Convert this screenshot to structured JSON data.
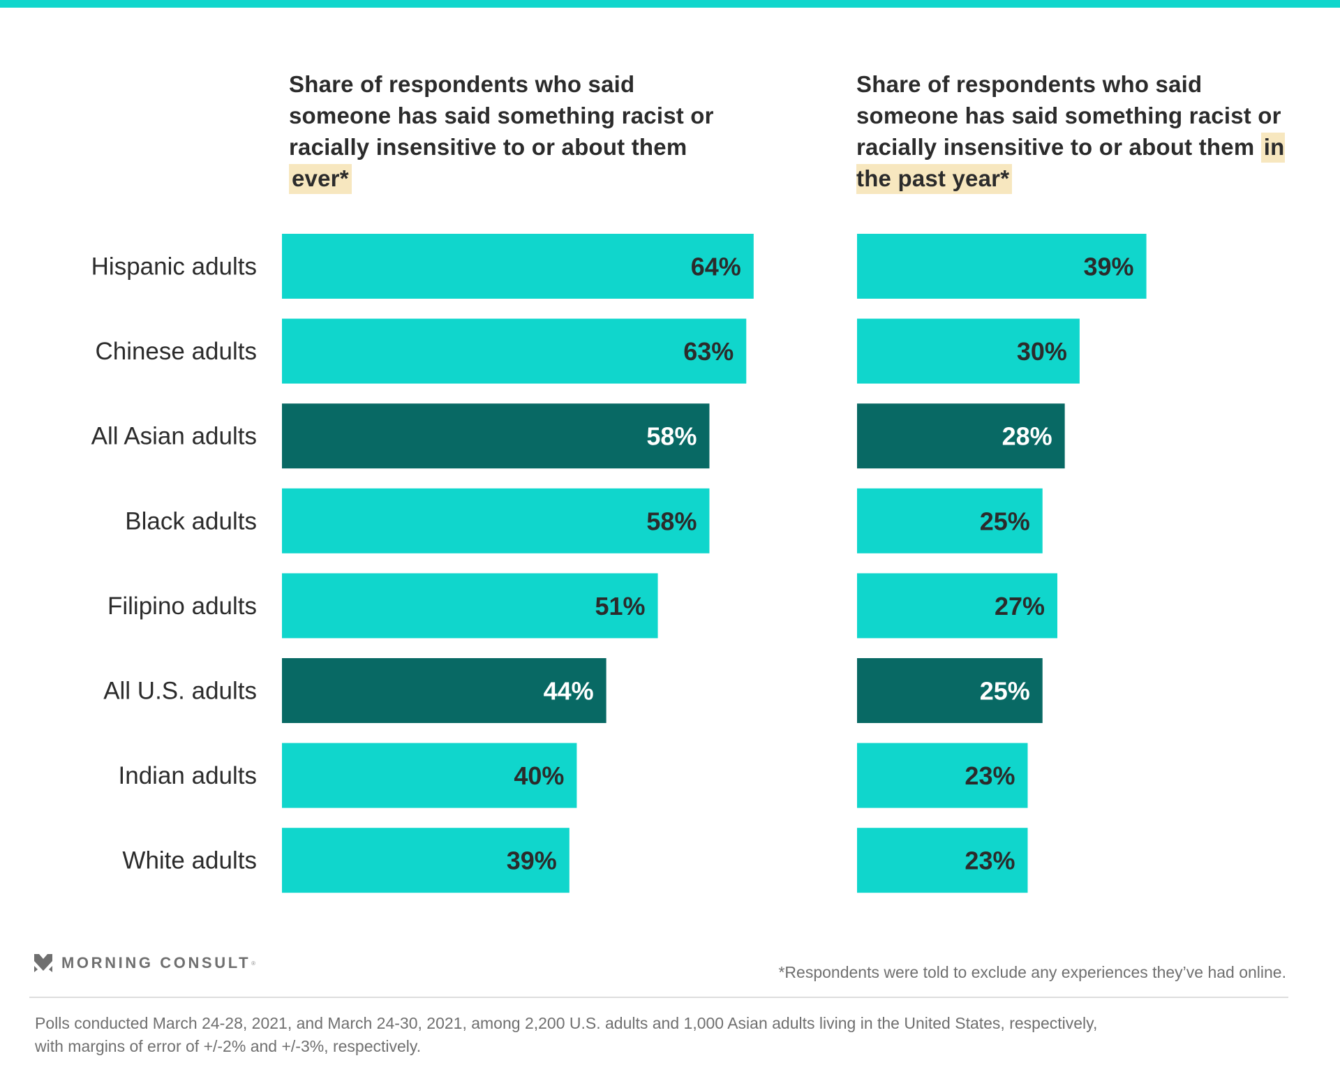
{
  "colors": {
    "accent": "#10d6cc",
    "highlight_bar": "#086964",
    "title_highlight": "#f7e7bf",
    "text_dark": "#2b2b2b",
    "text_gray": "#6f6f6f"
  },
  "panels": {
    "left": {
      "title_prefix": "Share of respondents who said someone has said something racist or racially insensitive to or about them",
      "title_highlight": "ever*"
    },
    "right": {
      "title_prefix": "Share of respondents who said someone has said something racist or racially insensitive to or about them",
      "title_highlight": "in the past year*"
    }
  },
  "chart_data": [
    {
      "type": "bar",
      "orientation": "horizontal",
      "title": "Share of respondents who said someone has said something racist or racially insensitive to or about them ever*",
      "categories": [
        "Hispanic adults",
        "Chinese adults",
        "All Asian adults",
        "Black adults",
        "Filipino adults",
        "All U.S. adults",
        "Indian adults",
        "White adults"
      ],
      "values": [
        64,
        63,
        58,
        58,
        51,
        44,
        40,
        39
      ],
      "value_labels": [
        "64%",
        "63%",
        "58%",
        "58%",
        "51%",
        "44%",
        "40%",
        "39%"
      ],
      "highlighted": [
        false,
        false,
        true,
        false,
        false,
        true,
        false,
        false
      ],
      "unit": "%",
      "xlim": [
        0,
        100
      ],
      "grid": false,
      "xlabel": "",
      "ylabel": ""
    },
    {
      "type": "bar",
      "orientation": "horizontal",
      "title": "Share of respondents who said someone has said something racist or racially insensitive to or about them in the past year*",
      "categories": [
        "Hispanic adults",
        "Chinese adults",
        "All Asian adults",
        "Black adults",
        "Filipino adults",
        "All U.S. adults",
        "Indian adults",
        "White adults"
      ],
      "values": [
        39,
        30,
        28,
        25,
        27,
        25,
        23,
        23
      ],
      "value_labels": [
        "39%",
        "30%",
        "28%",
        "25%",
        "27%",
        "25%",
        "23%",
        "23%"
      ],
      "highlighted": [
        false,
        false,
        true,
        false,
        false,
        true,
        false,
        false
      ],
      "unit": "%",
      "xlim": [
        0,
        100
      ],
      "grid": false,
      "xlabel": "",
      "ylabel": ""
    }
  ],
  "footer": {
    "brand": "MORNING CONSULT",
    "brand_reg": "®",
    "logo_icon": "morning-consult-chevron-icon",
    "footnote": "*Respondents were told to exclude any experiences they’ve had online.",
    "notes_line1": "Polls conducted March 24-28, 2021, and March 24-30, 2021, among 2,200 U.S. adults and 1,000 Asian adults living in the United States, respectively,",
    "notes_line2": "with margins of error of +/-2% and +/-3%, respectively."
  }
}
